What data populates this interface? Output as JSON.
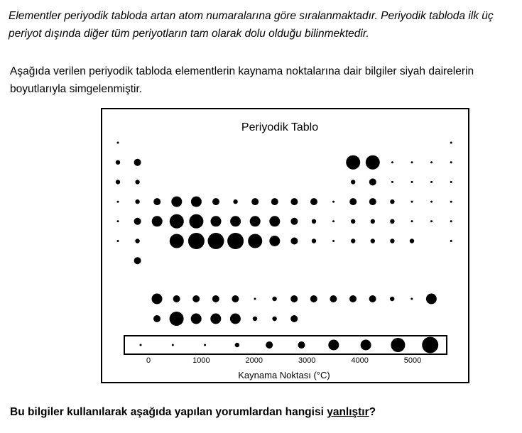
{
  "intro_text": "Elementler periyodik tabloda artan atom numaralarına göre sıralanmaktadır. Periyodik tabloda ilk üç periyot dışında diğer tüm periyotların tam olarak dolu olduğu bilinmektedir.",
  "description_text": "Aşağıda verilen periyodik tabloda elementlerin kaynama noktalarına dair bilgiler siyah dairelerin boyutlarıyla simgelenmiştir.",
  "question": {
    "prefix": "Bu bilgiler kullanılarak aşağıda yapılan yorumlardan hangisi ",
    "underlined": "yanlıştır",
    "suffix": "?"
  },
  "figure": {
    "title": "Periyodik Tablo",
    "dot_color": "#000000",
    "main_table": [
      [
        1,
        0,
        0,
        0,
        0,
        0,
        0,
        0,
        0,
        0,
        0,
        0,
        0,
        0,
        0,
        0,
        0,
        1
      ],
      [
        2,
        3,
        0,
        0,
        0,
        0,
        0,
        0,
        0,
        0,
        0,
        0,
        5,
        5,
        1,
        1,
        1,
        1
      ],
      [
        2,
        2,
        0,
        0,
        0,
        0,
        0,
        0,
        0,
        0,
        0,
        0,
        2,
        3,
        1,
        1,
        1,
        1
      ],
      [
        1,
        2,
        3,
        4,
        4,
        3,
        2,
        3,
        3,
        3,
        3,
        1,
        3,
        3,
        2,
        1,
        1,
        1
      ],
      [
        1,
        3,
        4,
        5,
        5,
        4,
        4,
        4,
        4,
        3,
        2,
        1,
        2,
        2,
        2,
        1,
        1,
        1
      ],
      [
        1,
        2,
        0,
        5,
        6,
        6,
        6,
        5,
        4,
        3,
        2,
        1,
        2,
        2,
        2,
        2,
        0,
        1
      ],
      [
        0,
        3,
        0,
        0,
        0,
        0,
        0,
        0,
        0,
        0,
        0,
        0,
        0,
        0,
        0,
        0,
        0,
        0
      ]
    ],
    "f_block": [
      [
        4,
        3,
        3,
        3,
        3,
        1,
        2,
        3,
        3,
        3,
        3,
        3,
        2,
        1,
        4
      ],
      [
        3,
        5,
        4,
        4,
        4,
        2,
        2,
        3,
        0,
        0,
        0,
        0,
        0,
        0,
        0
      ]
    ],
    "legend": {
      "title": "Kaynama Noktası (°C)",
      "tick_labels": [
        "0",
        "1000",
        "2000",
        "3000",
        "4000",
        "5000"
      ],
      "tick_values": [
        0,
        1000,
        2000,
        3000,
        4000,
        5000
      ],
      "dot_scale": [
        1,
        1,
        1,
        2,
        3,
        3,
        4,
        4,
        5,
        6
      ]
    }
  }
}
